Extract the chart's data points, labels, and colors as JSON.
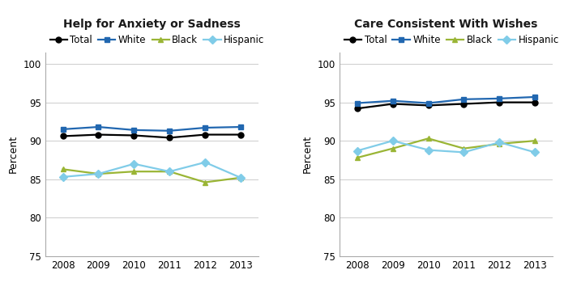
{
  "years": [
    2008,
    2009,
    2010,
    2011,
    2012,
    2013
  ],
  "chart1": {
    "title": "Help for Anxiety or Sadness",
    "total": [
      90.6,
      90.8,
      90.7,
      90.4,
      90.8,
      90.8
    ],
    "white": [
      91.5,
      91.8,
      91.4,
      91.3,
      91.7,
      91.8
    ],
    "black": [
      86.3,
      85.7,
      86.0,
      86.0,
      84.6,
      85.2
    ],
    "hispanic": [
      85.3,
      85.7,
      87.0,
      86.0,
      87.2,
      85.2
    ]
  },
  "chart2": {
    "title": "Care Consistent With Wishes",
    "total": [
      94.2,
      94.8,
      94.6,
      94.8,
      95.0,
      95.0
    ],
    "white": [
      94.9,
      95.2,
      94.9,
      95.4,
      95.5,
      95.7
    ],
    "black": [
      87.8,
      89.0,
      90.3,
      89.0,
      89.6,
      90.0
    ],
    "hispanic": [
      88.7,
      90.0,
      88.8,
      88.5,
      89.8,
      88.5
    ]
  },
  "colors": {
    "total": "#000000",
    "white": "#2167b0",
    "black": "#9ab535",
    "hispanic": "#80cce8"
  },
  "markers": {
    "total": "o",
    "white": "s",
    "black": "^",
    "hispanic": "D"
  },
  "legend_labels": [
    "Total",
    "White",
    "Black",
    "Hispanic"
  ],
  "groups": [
    "total",
    "white",
    "black",
    "hispanic"
  ],
  "ylabel": "Percent",
  "ylim": [
    75,
    101.5
  ],
  "yticks": [
    75,
    80,
    85,
    90,
    95,
    100
  ],
  "background_color": "#ffffff",
  "title_fontsize": 10,
  "label_fontsize": 9,
  "tick_fontsize": 8.5,
  "legend_fontsize": 8.5,
  "linewidth": 1.6,
  "markersize": 5
}
